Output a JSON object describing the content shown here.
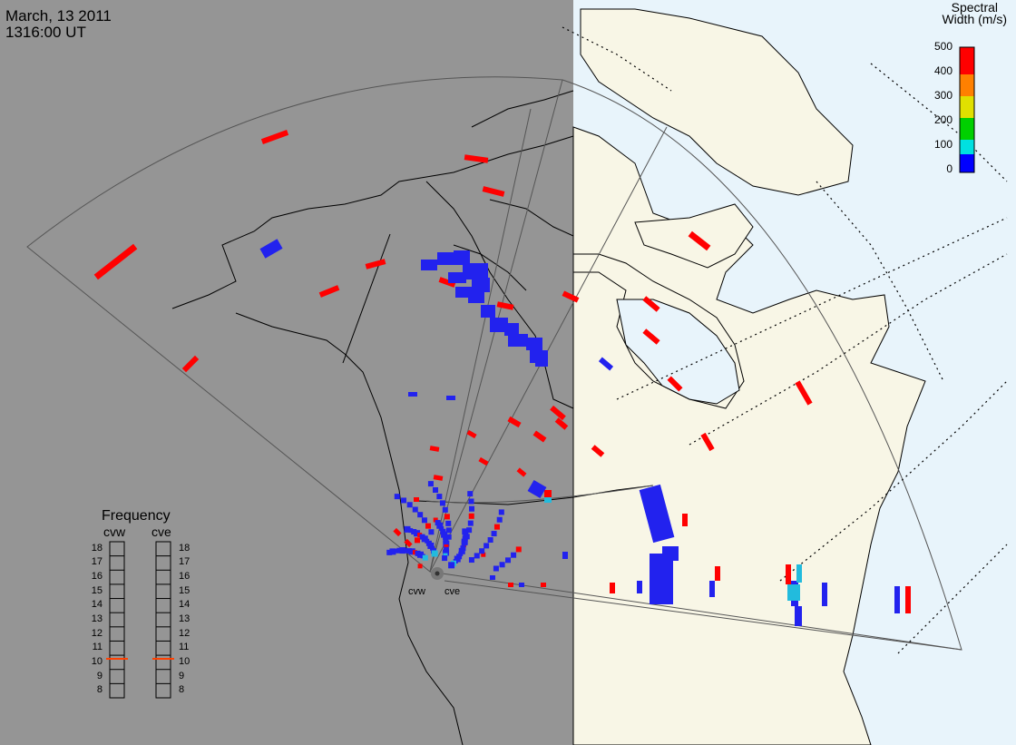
{
  "header": {
    "date": "March, 13 2011",
    "time": "1316:00 UT"
  },
  "colorbar": {
    "title_line1": "Spectral",
    "title_line2": "Width (m/s)",
    "ticks": [
      "500",
      "400",
      "300",
      "200",
      "100",
      "0"
    ],
    "colors": [
      "#ff0000",
      "#ff8000",
      "#ffff00",
      "#00e000",
      "#00ffff",
      "#0000ff"
    ]
  },
  "frequency": {
    "title": "Frequency",
    "radars": [
      {
        "name": "cvw",
        "value": 10.6
      },
      {
        "name": "cve",
        "value": 10.6
      }
    ],
    "ticks": [
      "18",
      "17",
      "16",
      "15",
      "14",
      "13",
      "12",
      "11",
      "10",
      "9",
      "8"
    ],
    "marker_color": "#ff4000"
  },
  "radars": [
    {
      "name": "cvw"
    },
    {
      "name": "cve"
    }
  ],
  "colors": {
    "night": "#959595",
    "day_ocean": "#e8f4fb",
    "day_land": "#f8f6e6",
    "high": "#ff0000",
    "low": "#2222ee",
    "mid": "#22bbdd"
  }
}
